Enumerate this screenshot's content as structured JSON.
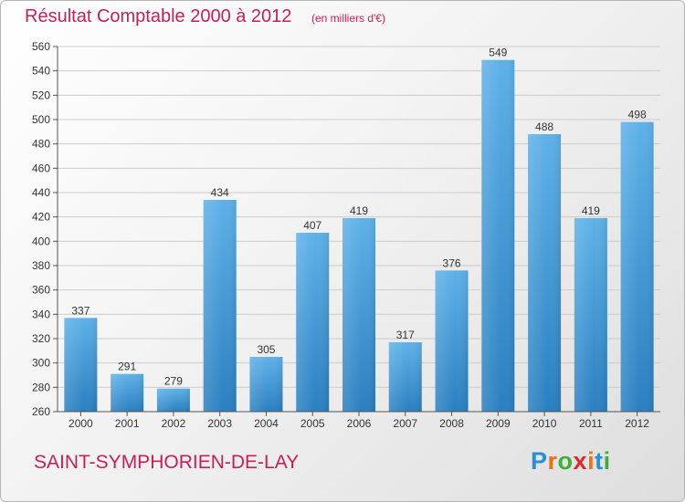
{
  "title": "Résultat Comptable 2000 à 2012",
  "subtitle": "(en milliers d'€)",
  "commune": "SAINT-SYMPHORIEN-DE-LAY",
  "logo": {
    "letters": [
      "P",
      "r",
      "o",
      "x",
      "i",
      "t",
      "i"
    ],
    "colors": [
      "#2a8fd6",
      "#e8731a",
      "#3fae3a",
      "#e02a2a",
      "#e8731a",
      "#2a8fd6",
      "#3fae3a"
    ]
  },
  "colors": {
    "title": "#c4215a",
    "bar_top": "#5eb1e8",
    "bar_bottom": "#2a7fc0",
    "grid": "#cccccc"
  },
  "chart_data": {
    "type": "bar",
    "categories": [
      "2000",
      "2001",
      "2002",
      "2003",
      "2004",
      "2005",
      "2006",
      "2007",
      "2008",
      "2009",
      "2010",
      "2011",
      "2012"
    ],
    "values": [
      337,
      291,
      279,
      434,
      305,
      407,
      419,
      317,
      376,
      549,
      488,
      419,
      498
    ],
    "value_labels": [
      "337",
      "291",
      "279",
      "434",
      "305",
      "407",
      "419",
      "317",
      "376",
      "549",
      "488",
      "419",
      "498"
    ],
    "y_ticks": [
      "260",
      "280",
      "300",
      "320",
      "340",
      "360",
      "380",
      "400",
      "420",
      "440",
      "460",
      "480",
      "500",
      "520",
      "540",
      "560"
    ],
    "ylim": [
      260,
      560
    ],
    "grid": true,
    "legend": "none"
  }
}
